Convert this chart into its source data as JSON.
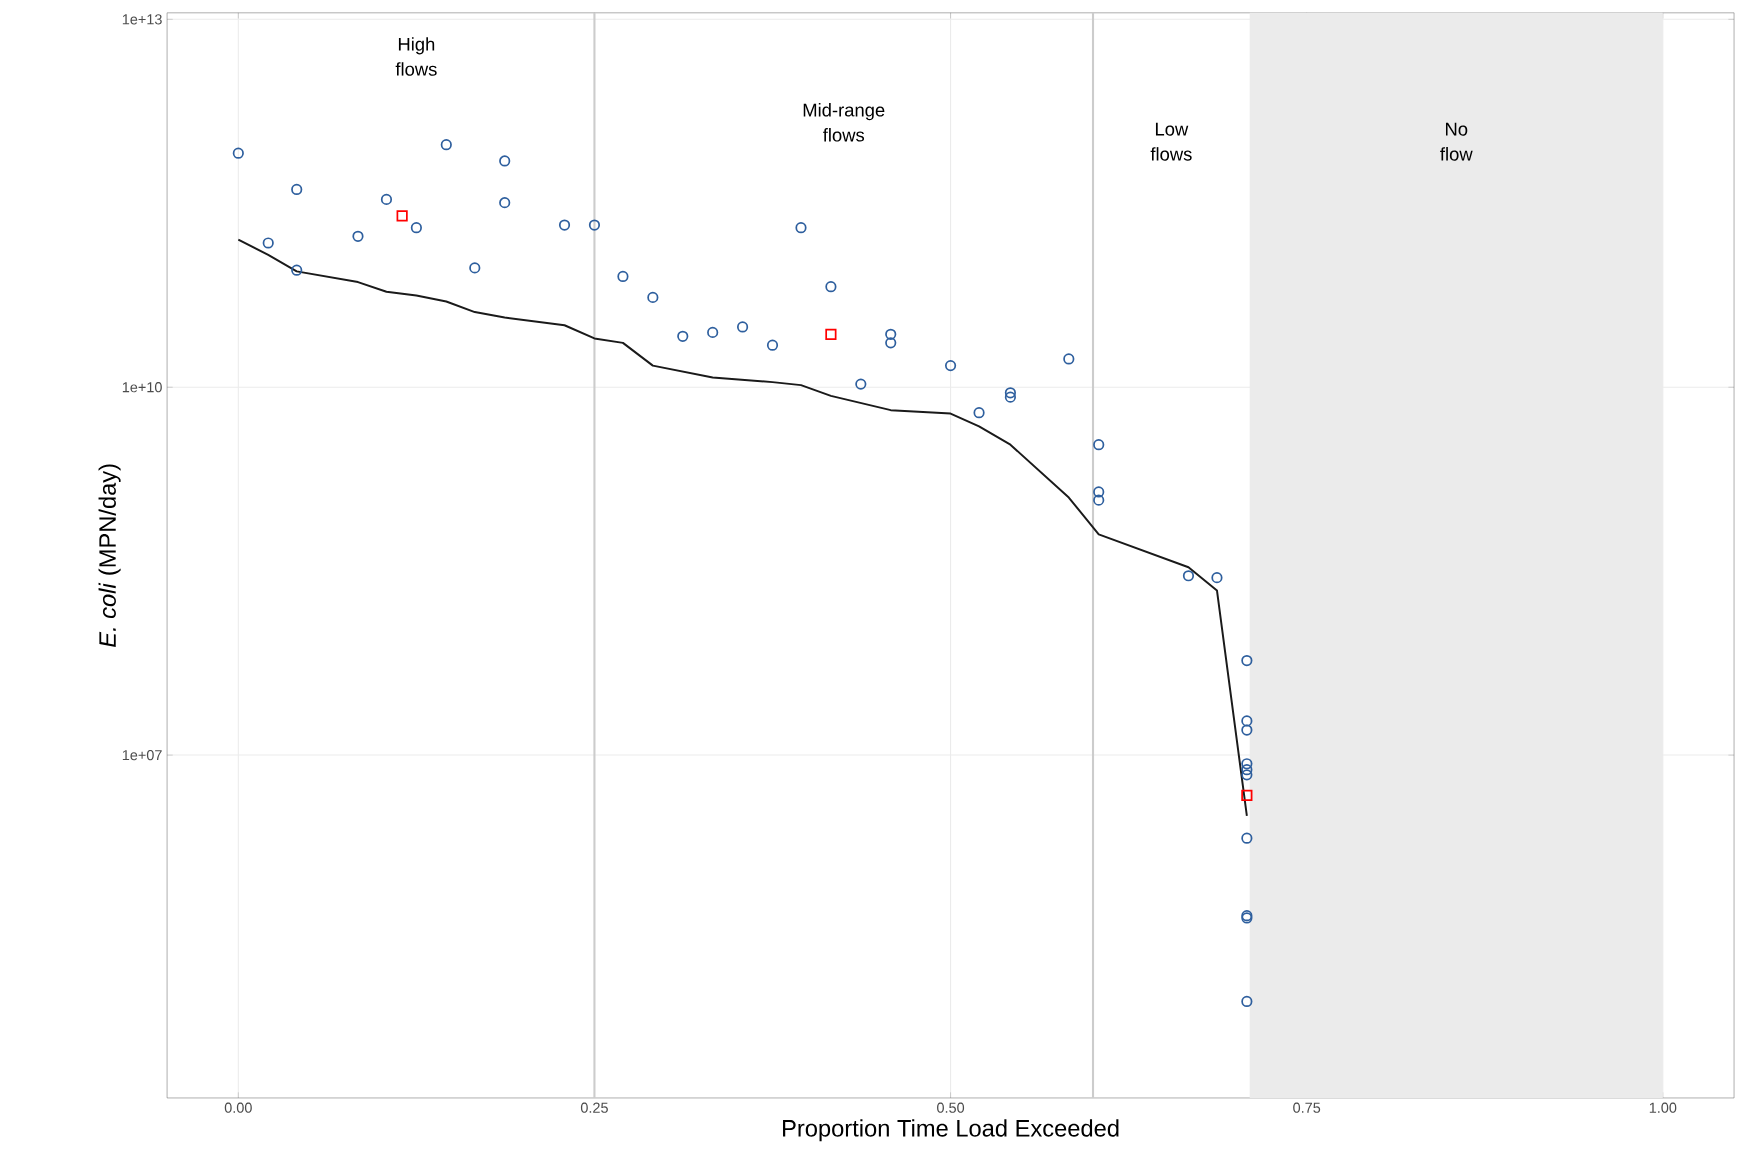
{
  "chart_data": {
    "type": "scatter",
    "xlabel": "Proportion Time Load Exceeded",
    "ylabel": "*E. coli* (MPN/day)",
    "log": "y",
    "grid": true,
    "xlim": [
      -0.05,
      1.05
    ],
    "ylim": [
      16000.0,
      11300000000000.0
    ],
    "xticks": [
      {
        "value": 0,
        "label": "0.00"
      },
      {
        "value": 0.25,
        "label": "0.25"
      },
      {
        "value": 0.5,
        "label": "0.50"
      },
      {
        "value": 0.75,
        "label": "0.75"
      },
      {
        "value": 1,
        "label": "1.00"
      }
    ],
    "yticks": [
      {
        "value": 10000000.0,
        "label": "1e+07"
      },
      {
        "value": 10000000000.0,
        "label": "1e+10"
      },
      {
        "value": 10000000000000.0,
        "label": "1e+13"
      }
    ],
    "ref_lines": [
      {
        "axis": "x",
        "value": 0.25,
        "color": "#cccccc"
      },
      {
        "axis": "x",
        "value": 0.6,
        "color": "#cccccc"
      }
    ],
    "bands": [
      {
        "axis": "x",
        "from": 0.71,
        "to": 1.0,
        "color": "#ebebeb"
      }
    ],
    "annotations": [
      "High flows",
      "Mid-range flows",
      "Low flows",
      "No flow"
    ],
    "series": [
      {
        "type": "line",
        "color": "#1a1a1a",
        "marker": "none",
        "line_style": "solid",
        "x": [
          0,
          0.021,
          0.041,
          0.084,
          0.104,
          0.125,
          0.146,
          0.166,
          0.187,
          0.229,
          0.25,
          0.27,
          0.291,
          0.333,
          0.375,
          0.395,
          0.416,
          0.458,
          0.5,
          0.52,
          0.542,
          0.583,
          0.604,
          0.667,
          0.687,
          0.708
        ],
        "values": [
          160000000000.0,
          120000000000.0,
          88000000000.0,
          72000000000.0,
          60000000000.0,
          56000000000.0,
          50000000000.0,
          41000000000.0,
          37000000000.0,
          32000000000.0,
          25000000000.0,
          23000000000.0,
          15000000000.0,
          12000000000.0,
          11000000000.0,
          10400000000.0,
          8500000000.0,
          6500000000.0,
          6100000000.0,
          4800000000.0,
          3400000000.0,
          1260000000.0,
          630000000.0,
          340000000.0,
          220000000.0,
          3200000.0
        ]
      },
      {
        "color": "#2e5f9e",
        "marker": "circle",
        "x": [
          0,
          0.021,
          0.041,
          0.041,
          0.084,
          0.104,
          0.125,
          0.146,
          0.166,
          0.187,
          0.187,
          0.229,
          0.25,
          0.27,
          0.291,
          0.312,
          0.333,
          0.354,
          0.375,
          0.395,
          0.416,
          0.437,
          0.458,
          0.458,
          0.5,
          0.52,
          0.542,
          0.542,
          0.583,
          0.604,
          0.604,
          0.604,
          0.667,
          0.687,
          0.708,
          0.708,
          0.708,
          0.708,
          0.708,
          0.708,
          0.708,
          0.708,
          0.708,
          0.708
        ],
        "values": [
          810000000000.0,
          150000000000.0,
          410000000000.0,
          90000000000.0,
          170000000000.0,
          340000000000.0,
          200000000000.0,
          950000000000.0,
          94000000000.0,
          700000000000.0,
          320000000000.0,
          210000000000.0,
          210000000000.0,
          80000000000.0,
          54000000000.0,
          26000000000.0,
          28000000000.0,
          31000000000.0,
          22000000000.0,
          200000000000.0,
          66000000000.0,
          10600000000.0,
          27000000000.0,
          23000000000.0,
          15000000000.0,
          6200000000.0,
          9000000000.0,
          8300000000.0,
          17000000000.0,
          3400000000.0,
          1400000000.0,
          1200000000.0,
          290000000.0,
          280000000.0,
          59000000.0,
          19000000.0,
          16000000.0,
          8500000.0,
          7600000.0,
          6900000.0,
          2100000.0,
          490000.0,
          470000.0,
          98000.0
        ]
      },
      {
        "color": "#ff0000",
        "marker": "square",
        "x": [
          0.115,
          0.416,
          0.708
        ],
        "values": [
          250000000000.0,
          27000000000.0,
          4700000.0
        ]
      }
    ]
  }
}
